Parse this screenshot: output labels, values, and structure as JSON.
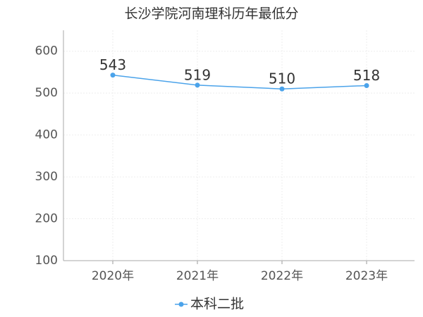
{
  "chart_data": {
    "type": "line",
    "title": "长沙学院河南理科历年最低分",
    "categories": [
      "2020年",
      "2021年",
      "2022年",
      "2023年"
    ],
    "series": [
      {
        "name": "本科二批",
        "color": "#4ba3ea",
        "values": [
          543,
          519,
          510,
          518
        ]
      }
    ],
    "ylim": [
      100,
      650
    ],
    "yticks": [
      100,
      200,
      300,
      400,
      500,
      600
    ],
    "grid": true
  }
}
